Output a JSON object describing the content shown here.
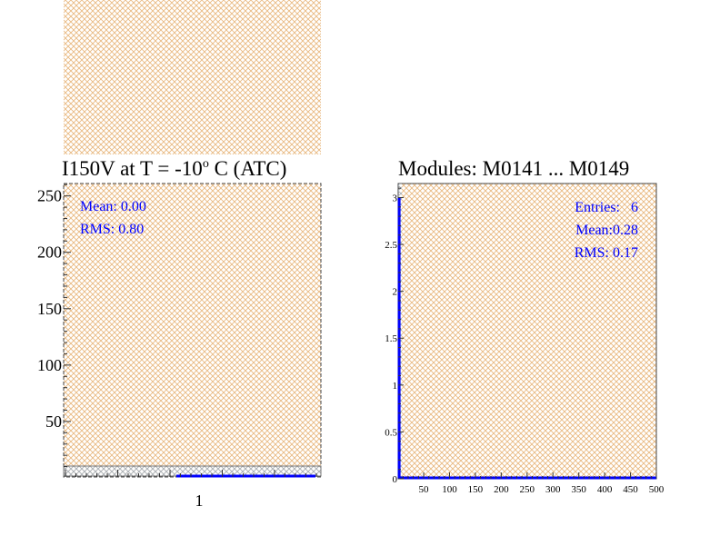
{
  "chart_data": [
    {
      "type": "bar",
      "title": "I150V at T =  -10",
      "title_superscript": "o",
      "title_suffix": " C (ATC)",
      "xlabel": "",
      "ylabel": "",
      "ylim": [
        0,
        261
      ],
      "yticks": [
        50,
        100,
        150,
        200,
        250
      ],
      "xtick_labels": [
        "1"
      ],
      "stats": [
        "Mean: 0.00",
        "RMS:  0.80"
      ],
      "fill_color": "#e8b880",
      "line_color": "#0000ff",
      "grid": false
    },
    {
      "type": "bar",
      "title": "Modules:  M0141 ... M0149",
      "xlabel": "",
      "ylabel": "",
      "xlim": [
        0,
        500
      ],
      "ylim": [
        0,
        3.15
      ],
      "xticks": [
        50,
        100,
        150,
        200,
        250,
        300,
        350,
        400,
        450,
        500
      ],
      "yticks": [
        0,
        0.5,
        1,
        1.5,
        2,
        2.5,
        3
      ],
      "bins": [
        {
          "x": [
            0,
            5
          ],
          "value": 3
        }
      ],
      "stats": [
        "Entries:   6",
        "Mean:0.28",
        "RMS: 0.17"
      ],
      "fill_color": "#e8b880",
      "line_color": "#0000ff",
      "grid": false
    }
  ]
}
